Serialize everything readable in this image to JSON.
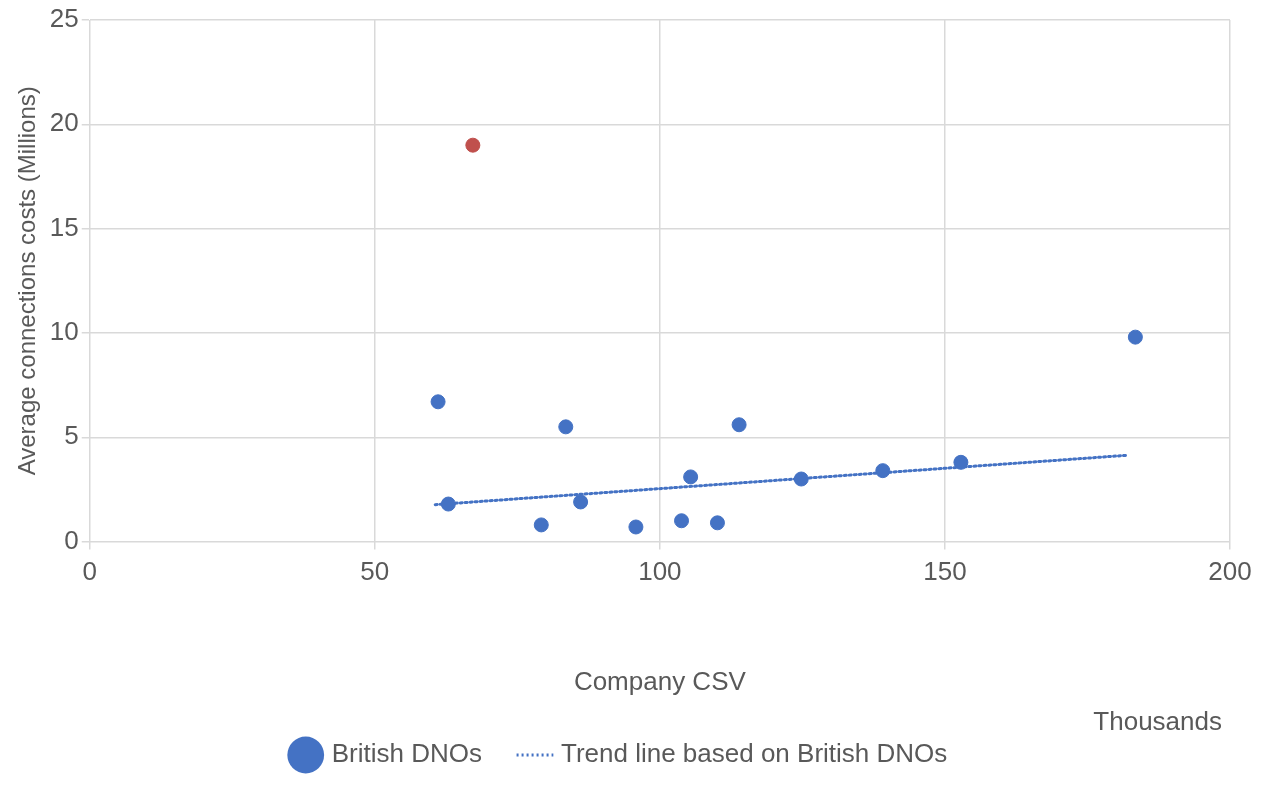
{
  "chart_data": {
    "type": "scatter",
    "xlabel": "Company CSV",
    "ylabel": "Average connections costs (Millions)",
    "annotations": [
      "Thousands"
    ],
    "xlim": [
      0,
      200
    ],
    "xticks": [
      0,
      50,
      100,
      150,
      200
    ],
    "ylim": [
      0,
      25
    ],
    "yticks": [
      0,
      5,
      10,
      15,
      20,
      25
    ],
    "grid": true,
    "legend": "bottom",
    "marker": "circle",
    "series": [
      {
        "name": "British DNOs",
        "color": "#4472c4",
        "x": [
          61.1,
          62.9,
          79.2,
          83.5,
          86.1,
          95.8,
          103.8,
          105.4,
          110.1,
          113.9,
          124.8,
          139.1,
          152.8,
          183.4
        ],
        "values": [
          6.7,
          1.8,
          0.8,
          5.5,
          1.9,
          0.7,
          1.0,
          3.1,
          0.9,
          5.6,
          3.0,
          3.4,
          3.8,
          9.8
        ]
      },
      {
        "color": "#c0504d",
        "x": [
          67.2
        ],
        "values": [
          19.0
        ]
      },
      {
        "name": "Trend line based on British DNOs",
        "type": "line",
        "marker": "none",
        "line_style": "dotted",
        "color": "#4472c4",
        "x": [
          60.6,
          182.1
        ],
        "values": [
          1.77,
          4.14
        ]
      }
    ]
  }
}
